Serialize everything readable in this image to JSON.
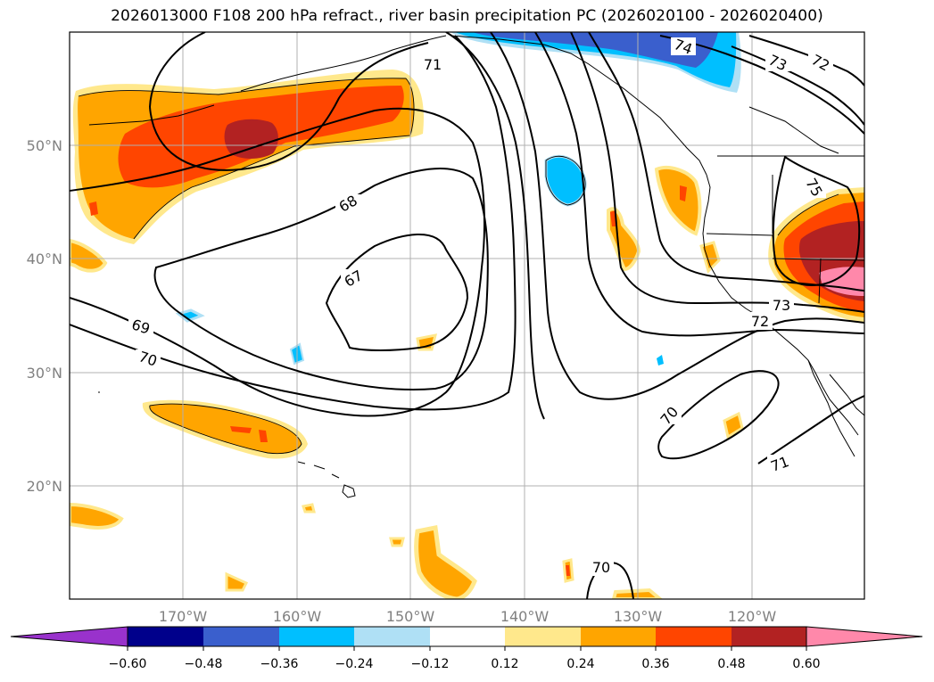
{
  "title": "2026013000 F108 200 hPa refract., river basin precipitation PC (2026020100 - 2026020400)",
  "map": {
    "lat_labels": [
      "50°N",
      "40°N",
      "30°N",
      "20°N"
    ],
    "lon_labels": [
      "170°W",
      "160°W",
      "150°W",
      "140°W",
      "130°W",
      "120°W"
    ],
    "contour_labels": [
      "71",
      "74",
      "73",
      "72",
      "68",
      "67",
      "69",
      "70",
      "75",
      "73",
      "72",
      "70",
      "71",
      "70"
    ]
  },
  "colorbar": {
    "ticks": [
      "−0.60",
      "−0.48",
      "−0.36",
      "−0.24",
      "−0.12",
      "0.12",
      "0.24",
      "0.36",
      "0.48",
      "0.60"
    ],
    "colors": [
      "#9932cc",
      "#00008b",
      "#3a5fcd",
      "#00bfff",
      "#afe0f5",
      "#ffffff",
      "#ffe88c",
      "#ffa500",
      "#ff4500",
      "#b22222",
      "#ff88aa"
    ]
  }
}
